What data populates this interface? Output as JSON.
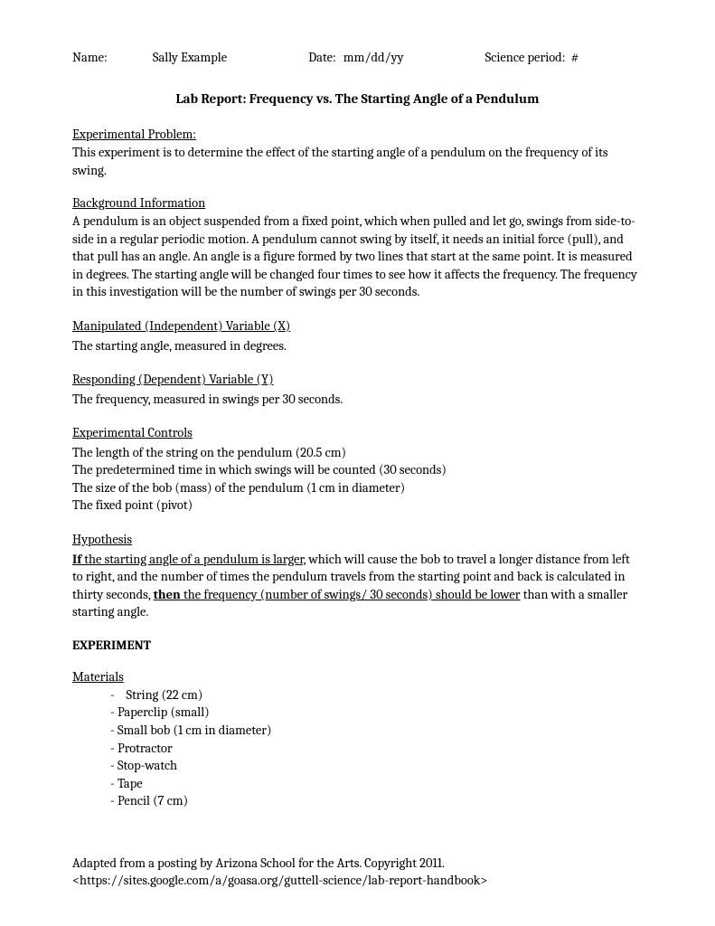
{
  "header": {
    "name_label": "Name:",
    "name_value": "Sally Example",
    "date_label": "Date:",
    "date_value": "mm/dd/yy",
    "period_label": "Science period:",
    "period_value": "#"
  },
  "title": "Lab Report: Frequency vs. The Starting Angle of a Pendulum",
  "sections": {
    "problem": {
      "heading": "Experimental Problem:",
      "body": "This experiment is to determine the effect of the starting angle of a pendulum on the frequency of its swing."
    },
    "background": {
      "heading": "Background Information",
      "body": "A pendulum is an object suspended from a fixed point, which when pulled and let go, swings from side-to-side in a regular periodic motion. A pendulum cannot swing by itself, it needs an initial force (pull), and that pull has an angle. An angle is a figure formed by two lines that start at the same point. It is measured in degrees. The starting angle will be changed four times to see how it affects the frequency. The frequency in this investigation will be the number of swings per 30 seconds."
    },
    "independent": {
      "heading": "Manipulated (Independent) Variable (X)",
      "body": "The starting angle, measured in degrees."
    },
    "dependent": {
      "heading": "Responding (Dependent) Variable (Y)",
      "body": "The frequency, measured in swings per 30 seconds."
    },
    "controls": {
      "heading": "Experimental Controls",
      "lines": [
        " The length of the string on the pendulum (20.5 cm)",
        "The predetermined time in which swings will be counted (30 seconds)",
        "The size of the bob (mass) of the pendulum (1 cm in diameter)",
        " The fixed point (pivot)"
      ]
    },
    "hypothesis": {
      "heading": "Hypothesis",
      "if_bold_underline": "If",
      "if_underline_rest": " the starting angle of a pendulum is larger,",
      "middle": " which will cause the bob to travel a longer distance from left to right, and the number of times the pendulum travels from the starting point and back is calculated in thirty seconds, ",
      "then_bold": "then",
      "then_underline_rest": " the frequency (number of swings/ 30 seconds) should be lower",
      "tail": " than with a smaller starting angle."
    },
    "experiment_heading": "EXPERIMENT",
    "materials": {
      "heading": "Materials",
      "items": [
        "String (22 cm)",
        "Paperclip (small)",
        "Small bob (1 cm in diameter)",
        "Protractor",
        "Stop-watch",
        "Tape",
        "Pencil (7 cm)"
      ]
    }
  },
  "footer": {
    "line1": "Adapted from a posting by Arizona School for the Arts.  Copyright 2011.",
    "line2": "<https://sites.google.com/a/goasa.org/guttell-science/lab-report-handbook>"
  }
}
